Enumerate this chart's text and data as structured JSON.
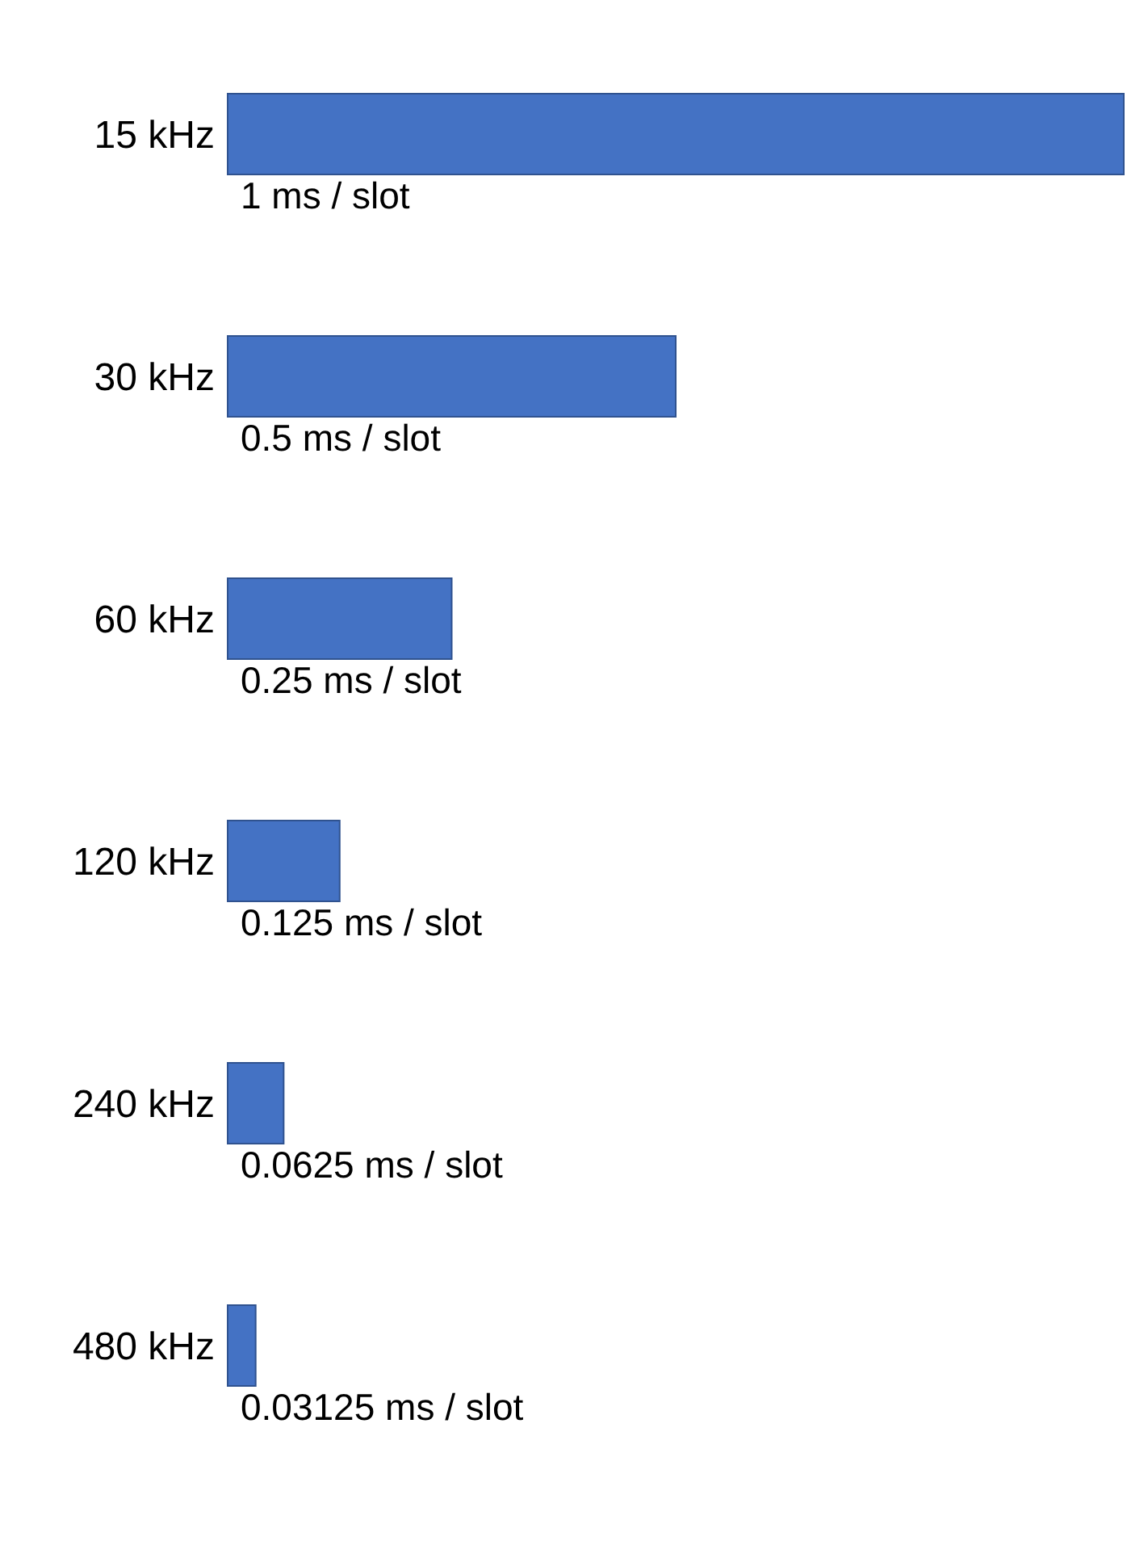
{
  "chart_data": {
    "type": "bar",
    "orientation": "horizontal",
    "categories": [
      "15 kHz",
      "30 kHz",
      "60 kHz",
      "120 kHz",
      "240 kHz",
      "480 kHz"
    ],
    "values": [
      1,
      0.5,
      0.25,
      0.125,
      0.0625,
      0.03125
    ],
    "value_labels": [
      "1 ms / slot",
      "0.5 ms / slot",
      "0.25 ms / slot",
      "0.125 ms / slot",
      "0.0625 ms / slot",
      "0.03125 ms / slot"
    ],
    "color": "#4472c4",
    "grid": false,
    "legend": false
  }
}
